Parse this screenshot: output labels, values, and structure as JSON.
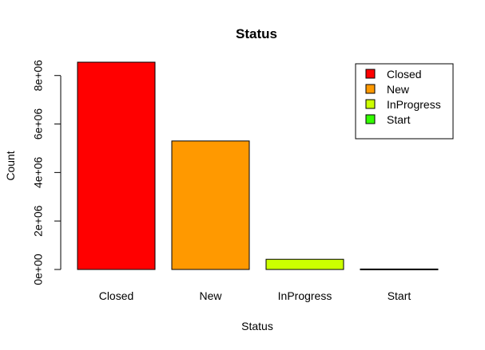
{
  "chart_data": {
    "type": "bar",
    "title": "Status",
    "xlabel": "Status",
    "ylabel": "Count",
    "categories": [
      "Closed",
      "New",
      "InProgress",
      "Start"
    ],
    "values": [
      8550000,
      5300000,
      420000,
      20000
    ],
    "colors": [
      "#FF0000",
      "#FF9900",
      "#CCFF00",
      "#33FF00"
    ],
    "ylim": [
      0,
      8550000
    ],
    "y_ticks": [
      0,
      2000000,
      4000000,
      6000000,
      8000000
    ],
    "y_tick_labels": [
      "0e+00",
      "2e+06",
      "4e+06",
      "6e+06",
      "8e+06"
    ],
    "legend": {
      "placement": "top-right",
      "entries": [
        "Closed",
        "New",
        "InProgress",
        "Start"
      ]
    },
    "grid": false
  }
}
